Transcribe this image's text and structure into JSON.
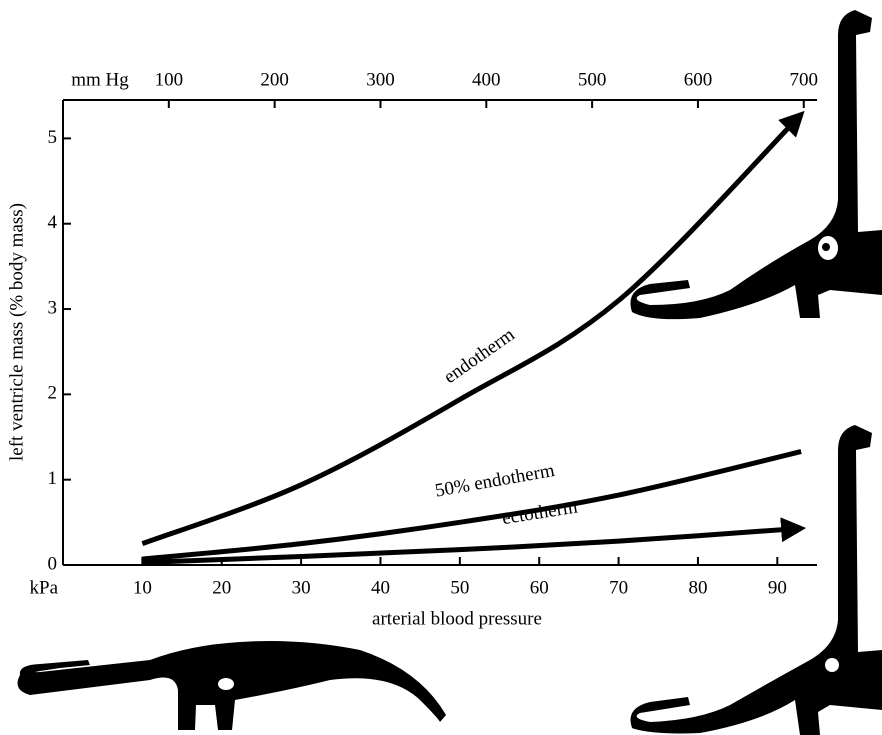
{
  "chart_data": {
    "type": "line",
    "xlabel": "arterial blood pressure",
    "ylabel": "left ventricle mass  (% body mass)",
    "x_unit": "kPa",
    "x2_unit": "mm Hg",
    "x": [
      10,
      30,
      50,
      70,
      93
    ],
    "series": [
      {
        "name": "endotherm",
        "color": "#000000",
        "arrow": true,
        "values": [
          0.25,
          0.94,
          1.94,
          3.1,
          5.28
        ]
      },
      {
        "name": "50% endotherm",
        "color": "#000000",
        "arrow": false,
        "values": [
          0.07,
          0.25,
          0.5,
          0.82,
          1.33
        ]
      },
      {
        "name": "ectotherm",
        "color": "#000000",
        "arrow": true,
        "values": [
          0.03,
          0.1,
          0.18,
          0.28,
          0.43
        ]
      }
    ],
    "xlim": [
      0,
      95
    ],
    "xticks": [
      10,
      20,
      30,
      40,
      50,
      60,
      70,
      80,
      90
    ],
    "x2lim": [
      0,
      712.5
    ],
    "x2ticks": [
      100,
      200,
      300,
      400,
      500,
      600,
      700
    ],
    "ylim": [
      0,
      5.45
    ],
    "yticks": [
      0,
      1,
      2,
      3,
      4,
      5
    ]
  }
}
